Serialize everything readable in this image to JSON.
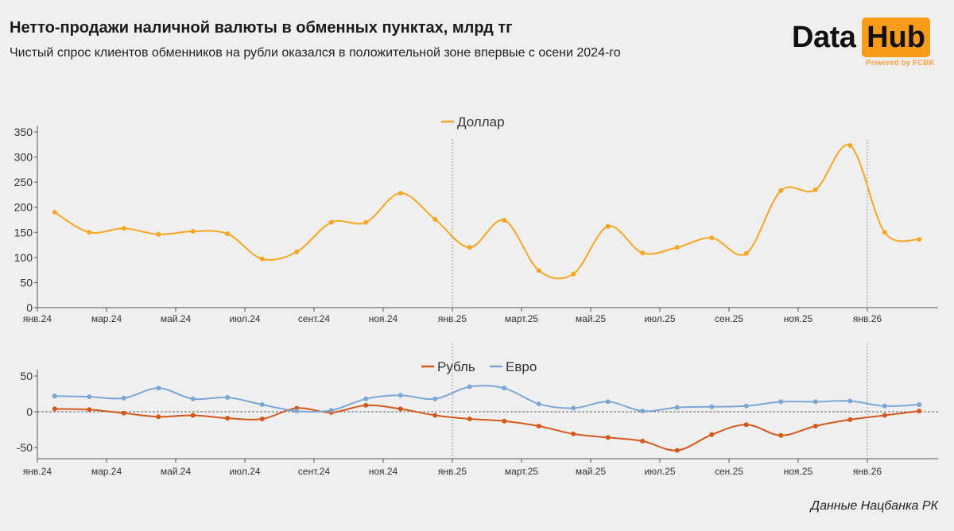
{
  "header": {
    "title": "Нетто-продажи наличной валюты в обменных пунктах, млрд тг",
    "subtitle": "Чистый спрос клиентов обменников на рубли оказался в положительной зоне впервые с осени 2024-го"
  },
  "logo": {
    "text1": "Data",
    "text2": "Hub",
    "powered": "Powered by FCBK",
    "accent": "#fb9b1b"
  },
  "footer": {
    "source": "Данные Нацбанка РК"
  },
  "chart_data": [
    {
      "type": "line",
      "months": [
        "янв.24",
        "фев.24",
        "мар.24",
        "апр.24",
        "май.24",
        "июн.24",
        "июл.24",
        "авг.24",
        "сент.24",
        "окт.24",
        "ноя.24",
        "дек.24",
        "янв.25",
        "фев.25",
        "март.25",
        "апр.25",
        "май.25",
        "июн.25",
        "июл.25",
        "авг.25",
        "сен.25",
        "окт.25",
        "ноя.25",
        "дек.25",
        "янв.26",
        "фев.26"
      ],
      "tick_labels": [
        "янв.24",
        "мар.24",
        "май.24",
        "июл.24",
        "сент.24",
        "ноя.24",
        "янв.25",
        "март.25",
        "май.25",
        "июл.25",
        "сен.25",
        "ноя.25",
        "янв.26"
      ],
      "yticks": [
        0,
        50,
        100,
        150,
        200,
        250,
        300,
        350
      ],
      "ylim": [
        0,
        350
      ],
      "legend_placement": "top-center",
      "series": [
        {
          "name": "Доллар",
          "color": "#f5a623",
          "values": [
            190,
            150,
            158,
            146,
            152,
            147,
            97,
            111,
            170,
            170,
            228,
            176,
            120,
            174,
            74,
            67,
            162,
            109,
            120,
            139,
            108,
            233,
            235,
            323,
            150,
            136
          ]
        }
      ]
    },
    {
      "type": "line",
      "months": [
        "янв.24",
        "фев.24",
        "мар.24",
        "апр.24",
        "май.24",
        "июн.24",
        "июл.24",
        "авг.24",
        "сент.24",
        "окт.24",
        "ноя.24",
        "дек.24",
        "янв.25",
        "фев.25",
        "март.25",
        "апр.25",
        "май.25",
        "июн.25",
        "июл.25",
        "авг.25",
        "сен.25",
        "окт.25",
        "ноя.25",
        "дек.25",
        "янв.26",
        "фев.26"
      ],
      "tick_labels": [
        "янв.24",
        "мар.24",
        "май.24",
        "июл.24",
        "сент.24",
        "ноя.24",
        "янв.25",
        "март.25",
        "май.25",
        "июл.25",
        "сен.25",
        "ноя.25",
        "янв.26"
      ],
      "yticks": [
        -50,
        0,
        50
      ],
      "ylim": [
        -65,
        55
      ],
      "legend_placement": "top-center",
      "series": [
        {
          "name": "Рубль",
          "color": "#d4581c",
          "values": [
            4,
            3,
            -2,
            -7,
            -5,
            -9,
            -10,
            5,
            -1,
            9,
            4,
            -5,
            -10,
            -13,
            -20,
            -31,
            -36,
            -41,
            -54,
            -32,
            -18,
            -33,
            -20,
            -11,
            -5,
            1
          ]
        },
        {
          "name": "Евро",
          "color": "#7ba7d6",
          "values": [
            22,
            21,
            19,
            33,
            18,
            20,
            10,
            1,
            2,
            18,
            23,
            18,
            35,
            33,
            11,
            5,
            14,
            1,
            6,
            7,
            8,
            14,
            14,
            15,
            8,
            10
          ]
        }
      ]
    }
  ]
}
